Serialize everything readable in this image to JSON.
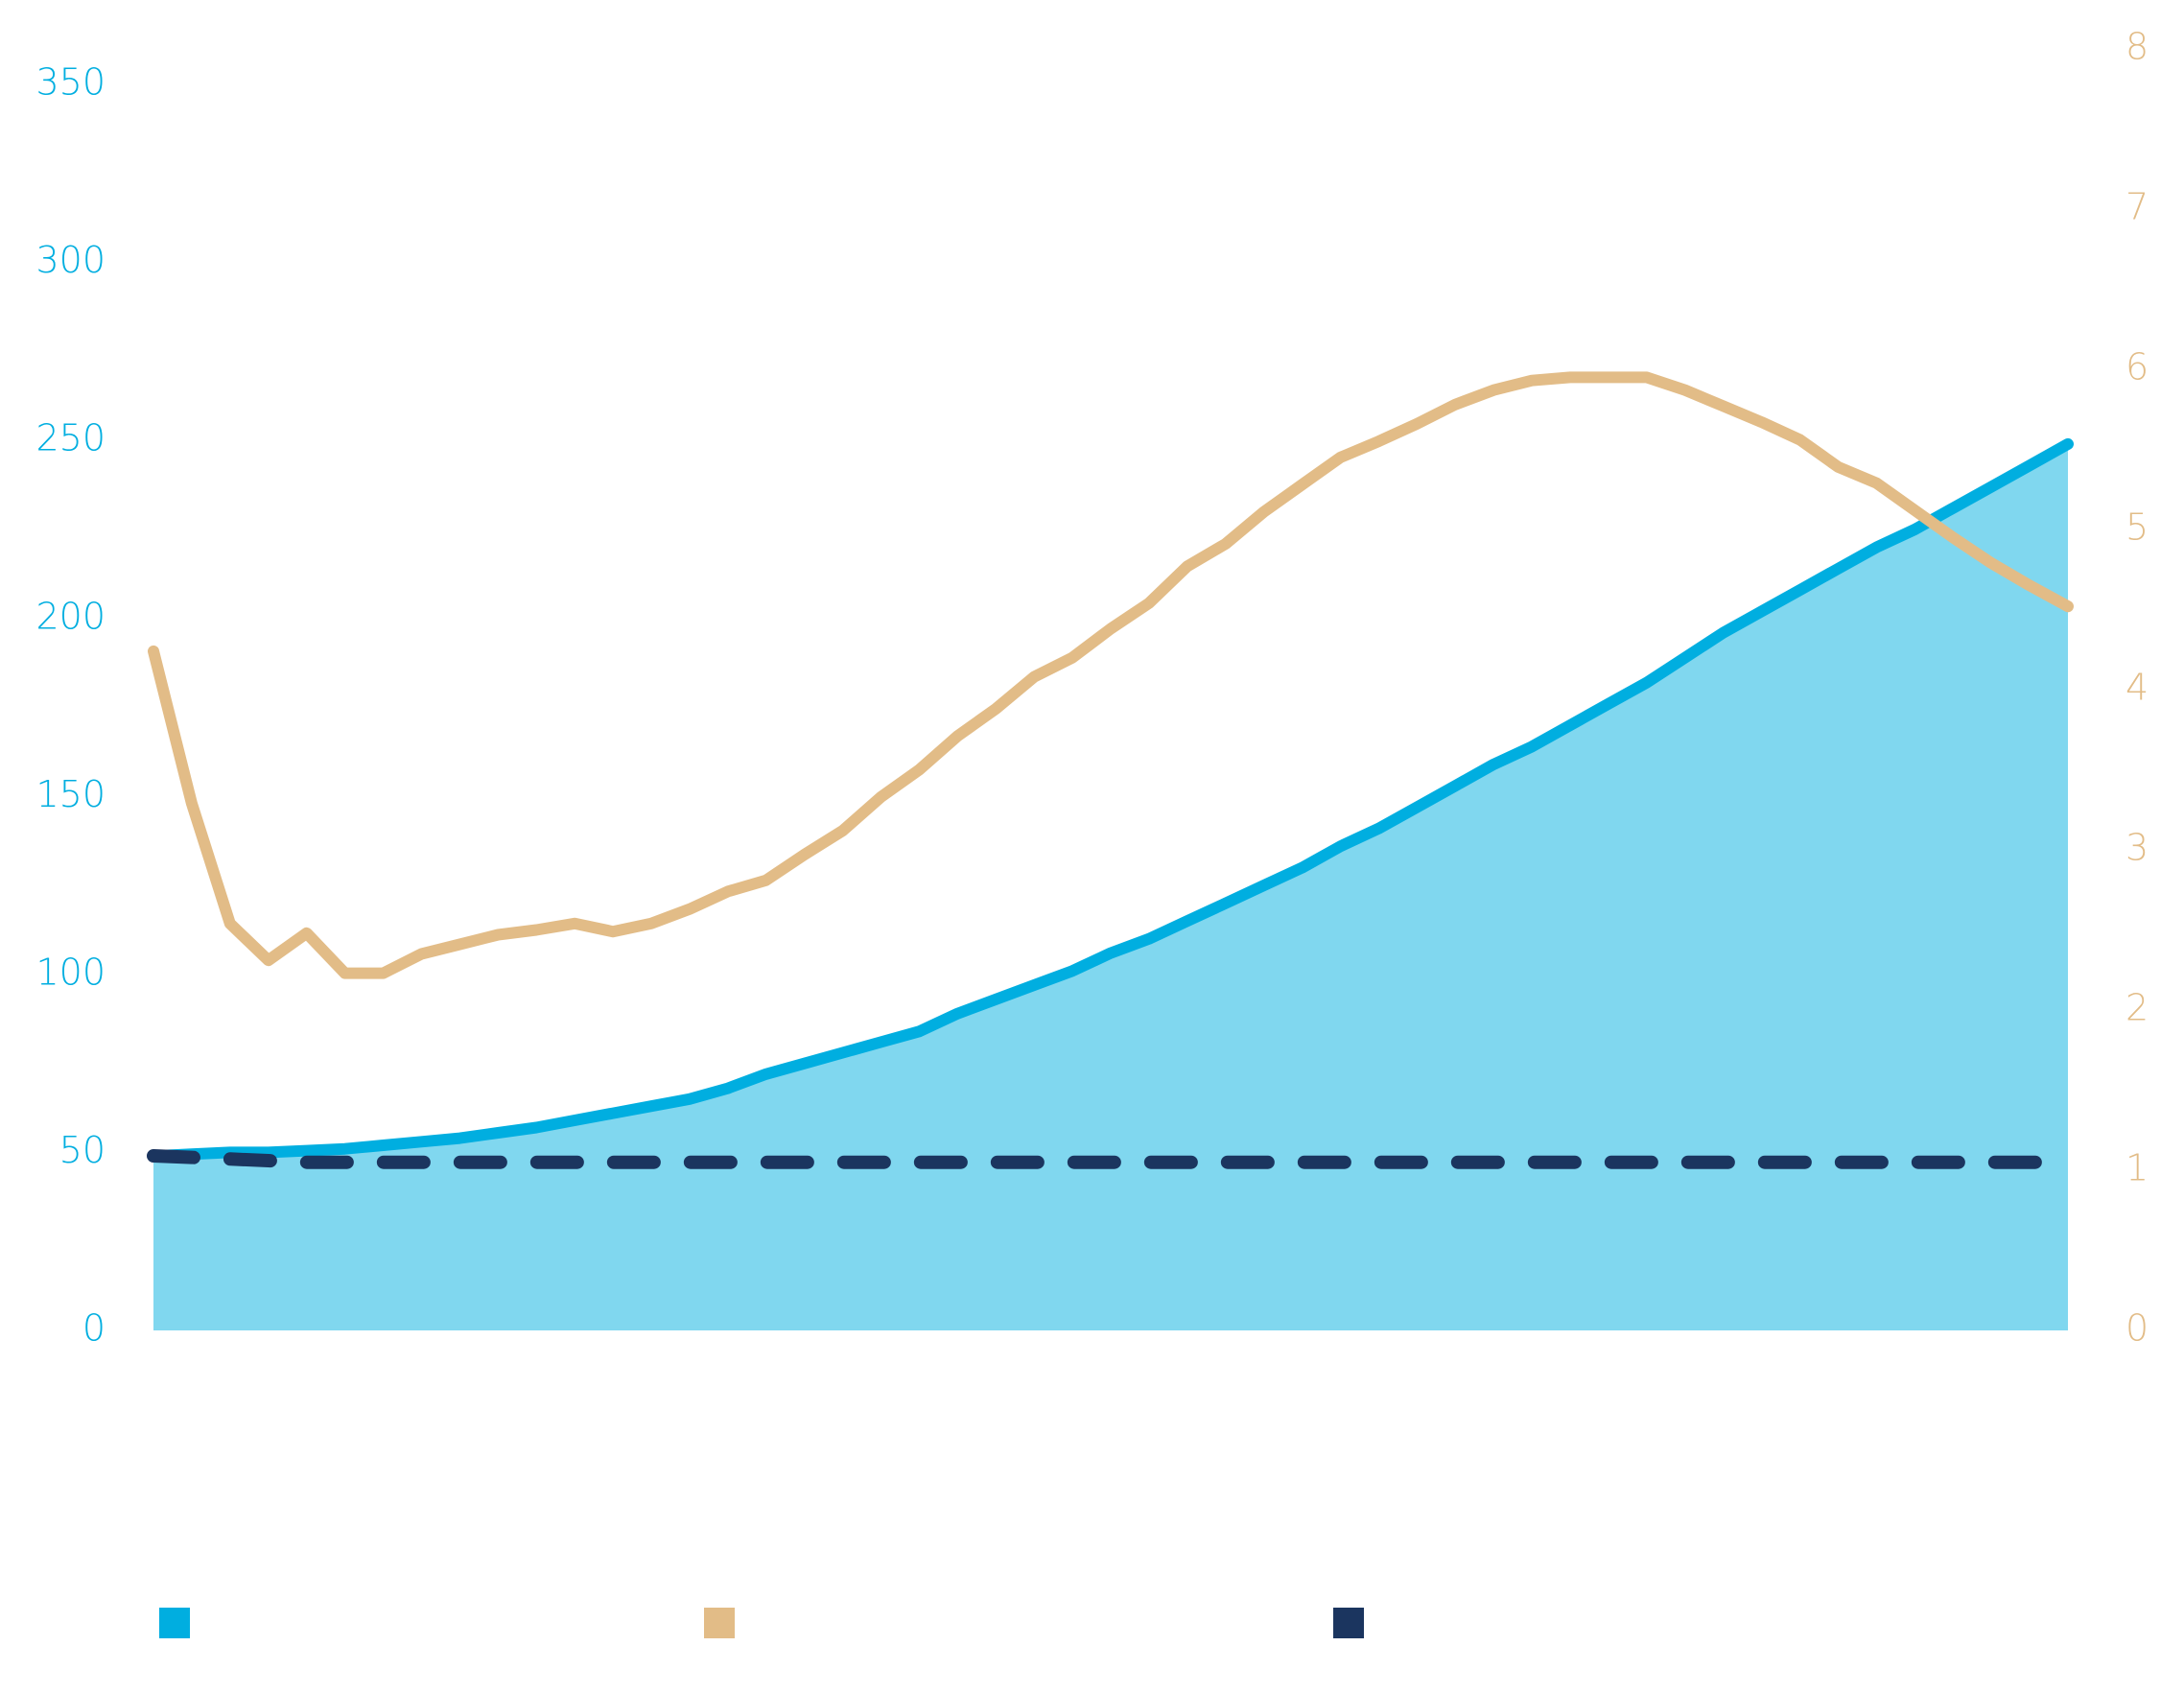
{
  "chart_data": {
    "type": "line",
    "ylim": [
      0,
      360
    ],
    "yticks": [
      0,
      50,
      100,
      150,
      200,
      250,
      300,
      350
    ],
    "ytick_color": "#00aee0",
    "y2lim": [
      0,
      8
    ],
    "y2ticks": [
      0,
      1,
      2,
      3,
      4,
      5,
      6,
      7,
      8
    ],
    "y2tick_color": "#e2bc87",
    "grid": false,
    "legend": "bottom",
    "series": [
      {
        "color": "#00aee0",
        "style": "area",
        "area_color": "#80d7ef",
        "values": [
          49,
          49.5,
          50,
          50,
          50.5,
          51,
          52,
          53,
          54,
          55.5,
          57,
          59,
          61,
          63,
          65,
          68,
          72,
          75,
          78,
          81,
          84,
          89,
          93,
          97,
          101,
          106,
          110,
          115,
          120,
          125,
          130,
          136,
          141,
          147,
          153,
          159,
          164,
          170,
          176,
          182,
          189,
          196,
          202,
          208,
          214,
          220,
          225,
          231,
          237,
          243,
          249
        ]
      },
      {
        "color": "#e2bc87",
        "style": "solid",
        "axis": "y2",
        "values": [
          4.24,
          3.29,
          2.54,
          2.31,
          2.48,
          2.23,
          2.23,
          2.35,
          2.41,
          2.47,
          2.5,
          2.54,
          2.49,
          2.54,
          2.63,
          2.74,
          2.81,
          2.97,
          3.12,
          3.33,
          3.5,
          3.71,
          3.88,
          4.08,
          4.2,
          4.38,
          4.54,
          4.77,
          4.91,
          5.11,
          5.28,
          5.45,
          5.55,
          5.66,
          5.78,
          5.87,
          5.93,
          5.95,
          5.95,
          5.95,
          5.87,
          5.77,
          5.67,
          5.56,
          5.39,
          5.29,
          5.12,
          4.95,
          4.79,
          4.65,
          4.52
        ]
      },
      {
        "color": "#1b355f",
        "style": "dashed",
        "axis": "y2",
        "values": [
          1.09,
          1.08,
          1.07,
          1.06,
          1.05,
          1.05,
          1.05,
          1.05,
          1.05,
          1.05,
          1.05,
          1.05,
          1.05,
          1.05,
          1.05,
          1.05,
          1.05,
          1.05,
          1.05,
          1.05,
          1.05,
          1.05,
          1.05,
          1.05,
          1.05,
          1.05,
          1.05,
          1.05,
          1.05,
          1.05,
          1.05,
          1.05,
          1.05,
          1.05,
          1.05,
          1.05,
          1.05,
          1.05,
          1.05,
          1.05,
          1.05,
          1.05,
          1.05,
          1.05,
          1.05,
          1.05,
          1.05,
          1.05,
          1.05,
          1.05,
          1.05
        ]
      }
    ]
  }
}
